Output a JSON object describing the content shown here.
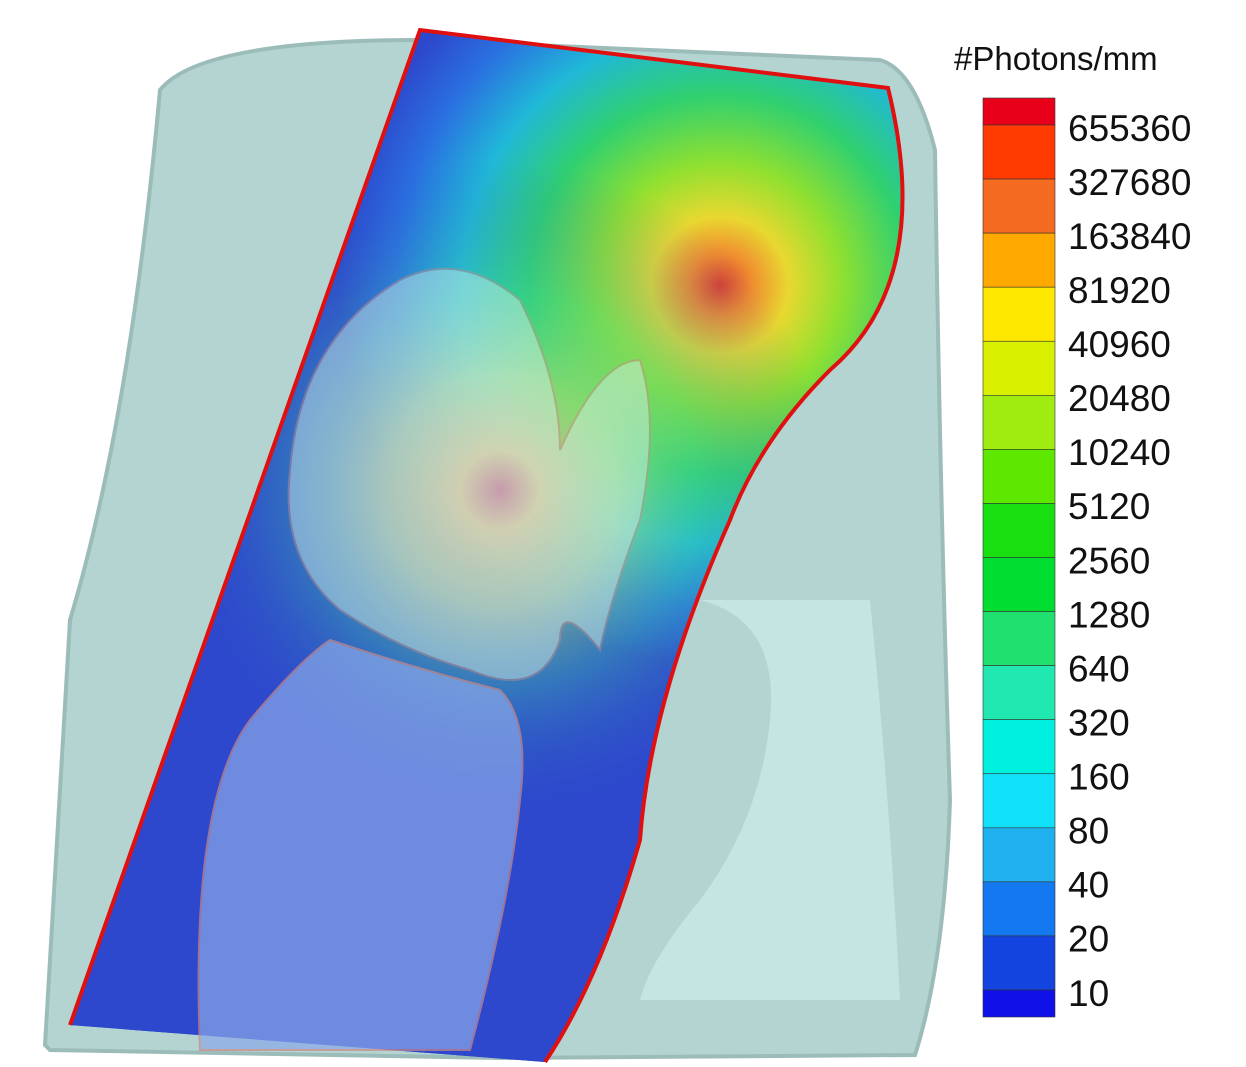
{
  "colorbar": {
    "title": "#Photons/mm",
    "levels": [
      655360,
      327680,
      163840,
      81920,
      40960,
      20480,
      10240,
      5120,
      2560,
      1280,
      640,
      320,
      160,
      80,
      40,
      20,
      10
    ],
    "colors": [
      "#e8001a",
      "#ff3a00",
      "#f46a20",
      "#ffa800",
      "#ffe800",
      "#d8f000",
      "#a0ec10",
      "#5ee800",
      "#18e010",
      "#00dc30",
      "#20e070",
      "#20e8b0",
      "#00f0e0",
      "#10e0f8",
      "#20b0f0",
      "#1478f0",
      "#1444e0",
      "#1010e8"
    ]
  }
}
